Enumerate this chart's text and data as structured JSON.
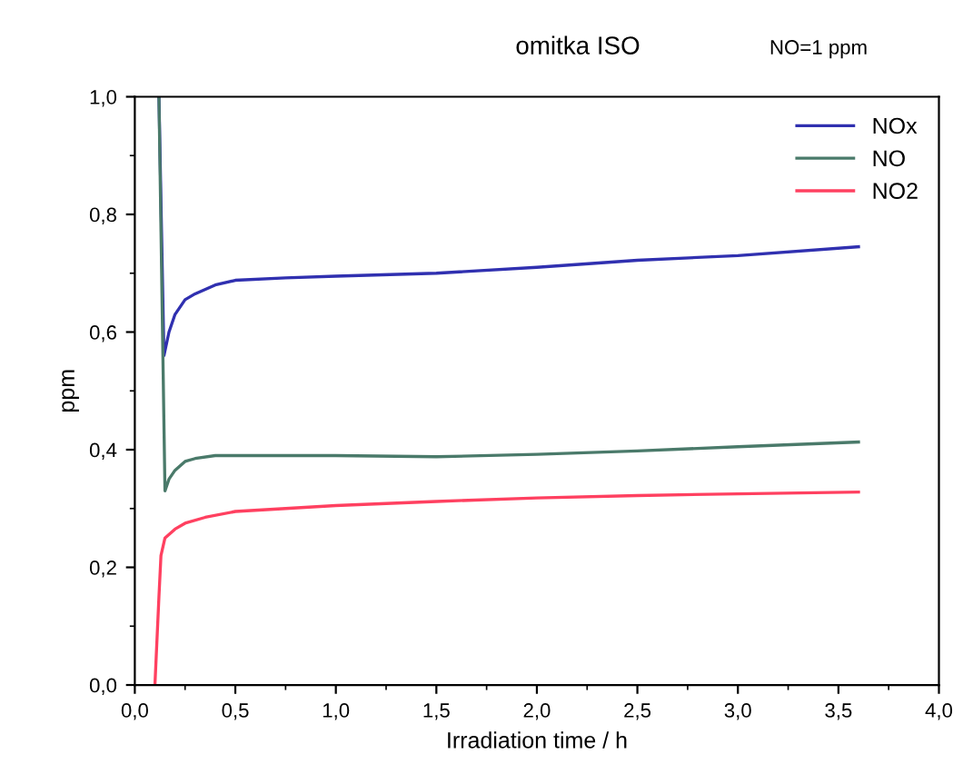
{
  "chart_data": {
    "type": "line",
    "title": "omitka ISO",
    "annotations": [
      "NO=1 ppm"
    ],
    "xlabel": "Irradiation time / h",
    "ylabel": "ppm",
    "xlim": [
      0,
      4
    ],
    "ylim": [
      0,
      1
    ],
    "xticks": [
      {
        "value": 0,
        "label": "0,0"
      },
      {
        "value": 0.5,
        "label": "0,5"
      },
      {
        "value": 1,
        "label": "1,0"
      },
      {
        "value": 1.5,
        "label": "1,5"
      },
      {
        "value": 2,
        "label": "2,0"
      },
      {
        "value": 2.5,
        "label": "2,5"
      },
      {
        "value": 3,
        "label": "3,0"
      },
      {
        "value": 3.5,
        "label": "3,5"
      },
      {
        "value": 4,
        "label": "4,0"
      }
    ],
    "yticks": [
      {
        "value": 0,
        "label": "0,0"
      },
      {
        "value": 0.2,
        "label": "0,2"
      },
      {
        "value": 0.4,
        "label": "0,4"
      },
      {
        "value": 0.6,
        "label": "0,6"
      },
      {
        "value": 0.8,
        "label": "0,8"
      },
      {
        "value": 1,
        "label": "1,0"
      }
    ],
    "grid": false,
    "legend": "top right",
    "marker": "none",
    "line_style": "solid",
    "series": [
      {
        "name": "NOx",
        "color": "#3030b0",
        "x": [
          0.12,
          0.145,
          0.17,
          0.2,
          0.25,
          0.3,
          0.4,
          0.5,
          0.75,
          1.0,
          1.5,
          2.0,
          2.5,
          3.0,
          3.6
        ],
        "values": [
          1.0,
          0.56,
          0.6,
          0.63,
          0.655,
          0.665,
          0.68,
          0.688,
          0.692,
          0.695,
          0.7,
          0.71,
          0.722,
          0.73,
          0.745
        ]
      },
      {
        "name": "NO",
        "color": "#4a7a6a",
        "x": [
          0.12,
          0.15,
          0.17,
          0.2,
          0.25,
          0.3,
          0.4,
          0.5,
          1.0,
          1.5,
          2.0,
          2.5,
          3.0,
          3.6
        ],
        "values": [
          1.0,
          0.33,
          0.35,
          0.365,
          0.38,
          0.385,
          0.39,
          0.39,
          0.39,
          0.388,
          0.392,
          0.398,
          0.405,
          0.413
        ]
      },
      {
        "name": "NO2",
        "color": "#ff4060",
        "x": [
          0.1,
          0.12,
          0.13,
          0.15,
          0.2,
          0.25,
          0.35,
          0.5,
          0.75,
          1.0,
          1.5,
          2.0,
          2.5,
          3.0,
          3.6
        ],
        "values": [
          0.0,
          0.15,
          0.22,
          0.25,
          0.265,
          0.275,
          0.285,
          0.295,
          0.3,
          0.305,
          0.312,
          0.318,
          0.322,
          0.325,
          0.328
        ]
      }
    ]
  }
}
